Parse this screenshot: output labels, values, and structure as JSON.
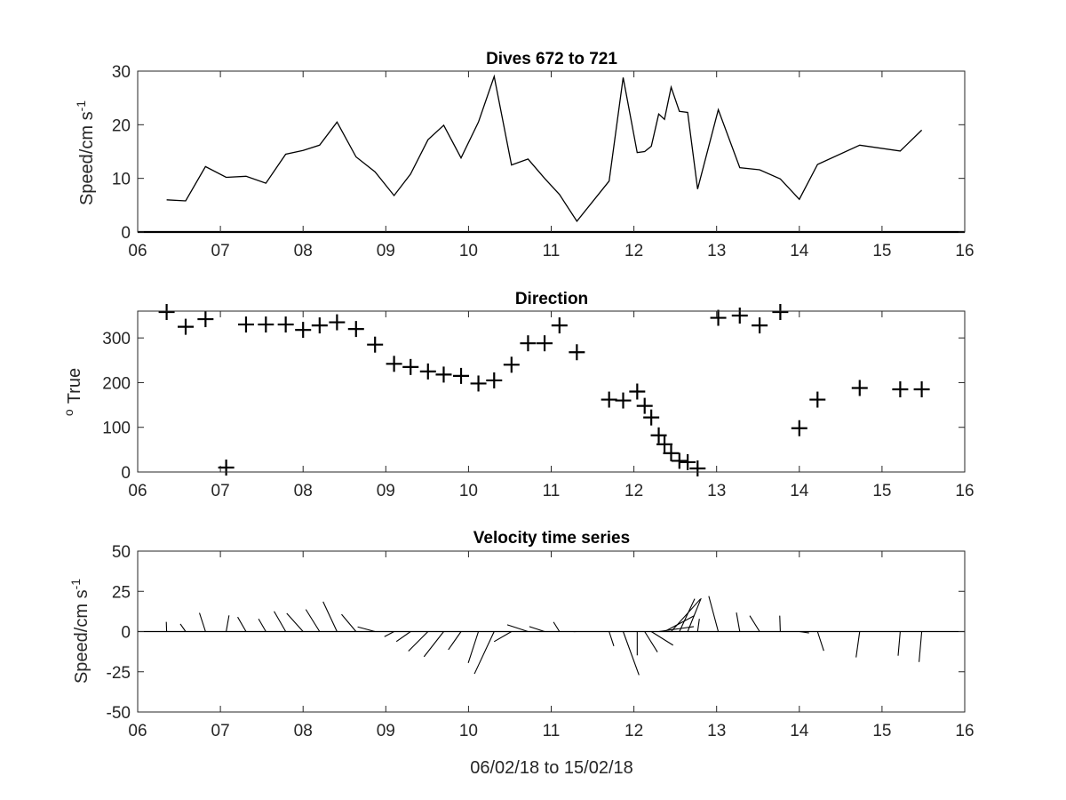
{
  "chart_data": [
    {
      "type": "line",
      "title": "Dives 672 to 721",
      "xlabel": "",
      "ylabel": "Speed/cm s",
      "ylabel_sup": "-1",
      "xlim": [
        6,
        16
      ],
      "ylim": [
        0,
        30
      ],
      "xticks": [
        6,
        7,
        8,
        9,
        10,
        11,
        12,
        13,
        14,
        15,
        16
      ],
      "xticklabels": [
        "06",
        "07",
        "08",
        "09",
        "10",
        "11",
        "12",
        "13",
        "14",
        "15",
        "16"
      ],
      "yticks": [
        0,
        10,
        20,
        30
      ],
      "yticklabels": [
        "0",
        "10",
        "20",
        "30"
      ],
      "grid": false,
      "color": "#000000",
      "x": [
        6.35,
        6.58,
        6.82,
        7.07,
        7.31,
        7.55,
        7.79,
        8.0,
        8.2,
        8.41,
        8.64,
        8.87,
        9.1,
        9.3,
        9.51,
        9.7,
        9.91,
        10.12,
        10.31,
        10.52,
        10.72,
        10.92,
        11.1,
        11.31,
        11.7,
        11.87,
        12.04,
        12.13,
        12.21,
        12.3,
        12.37,
        12.45,
        12.55,
        12.65,
        12.77,
        13.02,
        13.28,
        13.52,
        13.77,
        14.0,
        14.22,
        14.73,
        15.22,
        15.48
      ],
      "values": [
        6,
        5.8,
        12.2,
        10.2,
        10.4,
        9.1,
        14.5,
        15.2,
        16.2,
        20.5,
        14.0,
        11.2,
        6.8,
        10.8,
        17.2,
        19.9,
        13.8,
        20.5,
        29.0,
        12.5,
        13.6,
        10.0,
        7.0,
        2.0,
        9.5,
        28.8,
        14.8,
        15.0,
        16.0,
        22.0,
        21.0,
        27.0,
        22.5,
        22.3,
        8.0,
        22.8,
        12.0,
        11.6,
        9.9,
        6.1,
        12.6,
        16.2,
        15.1,
        19.0
      ]
    },
    {
      "type": "scatter",
      "title": "Direction",
      "xlabel": "",
      "ylabel": "True",
      "ylabel_sup": "o",
      "xlim": [
        6,
        16
      ],
      "ylim": [
        0,
        360
      ],
      "xticks": [
        6,
        7,
        8,
        9,
        10,
        11,
        12,
        13,
        14,
        15,
        16
      ],
      "xticklabels": [
        "06",
        "07",
        "08",
        "09",
        "10",
        "11",
        "12",
        "13",
        "14",
        "15",
        "16"
      ],
      "yticks": [
        0,
        100,
        200,
        300
      ],
      "yticklabels": [
        "0",
        "100",
        "200",
        "300"
      ],
      "grid": false,
      "marker": "+",
      "color": "#000000",
      "x": [
        6.35,
        6.58,
        6.82,
        7.07,
        7.31,
        7.55,
        7.79,
        8.0,
        8.2,
        8.41,
        8.64,
        8.87,
        9.1,
        9.3,
        9.51,
        9.7,
        9.91,
        10.12,
        10.31,
        10.52,
        10.72,
        10.92,
        11.1,
        11.31,
        11.7,
        11.87,
        12.04,
        12.13,
        12.21,
        12.3,
        12.37,
        12.45,
        12.55,
        12.65,
        12.77,
        13.02,
        13.28,
        13.52,
        13.77,
        14.0,
        14.22,
        14.73,
        15.22,
        15.48
      ],
      "values": [
        358,
        325,
        342,
        10,
        330,
        330,
        330,
        318,
        328,
        335,
        320,
        285,
        242,
        235,
        225,
        218,
        215,
        198,
        205,
        240,
        288,
        288,
        328,
        268,
        162,
        160,
        180,
        148,
        122,
        82,
        62,
        42,
        25,
        22,
        8,
        345,
        350,
        328,
        358,
        98,
        162,
        188,
        185,
        185
      ]
    },
    {
      "type": "vector",
      "title": "Velocity time series",
      "xlabel": "06/02/18 to 15/02/18",
      "ylabel": "Speed/cm s",
      "ylabel_sup": "-1",
      "xlim": [
        6,
        16
      ],
      "ylim": [
        -50,
        50
      ],
      "xticks": [
        6,
        7,
        8,
        9,
        10,
        11,
        12,
        13,
        14,
        15,
        16
      ],
      "xticklabels": [
        "06",
        "07",
        "08",
        "09",
        "10",
        "11",
        "12",
        "13",
        "14",
        "15",
        "16"
      ],
      "yticks": [
        50,
        25,
        0,
        -25,
        -50
      ],
      "yticklabels": [
        "50",
        "25",
        "0",
        "-25",
        "-50"
      ],
      "grid": false,
      "color": "#000000",
      "note": "sticks computed from speed and direction series (u = speed*sin(dir), v = speed*cos(dir))"
    }
  ]
}
